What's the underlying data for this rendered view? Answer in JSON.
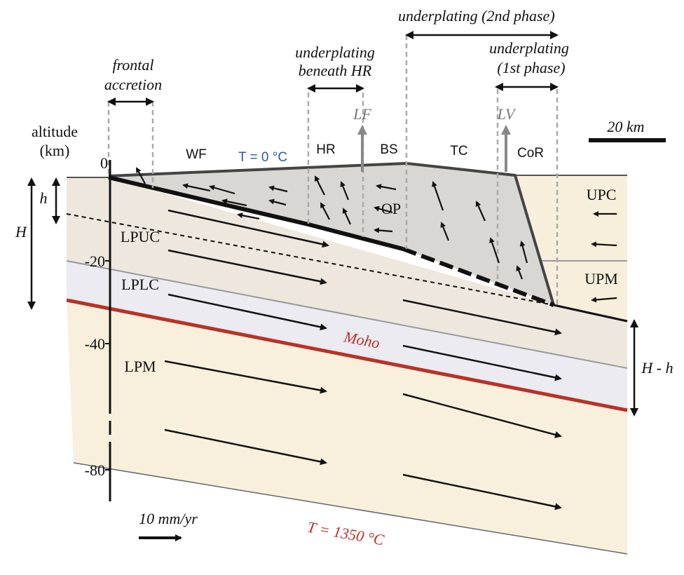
{
  "annotations": {
    "underplating_2nd": "underplating  (2nd phase)",
    "underplating_hr": [
      "underplating",
      "beneath HR"
    ],
    "frontal_accretion": [
      "frontal",
      "accretion"
    ],
    "underplating_1st": [
      "underplating",
      "(1st phase)"
    ],
    "lf": "LF",
    "lv": "LV",
    "scale_bar": "20 km",
    "velocity_scale": "10 mm/yr"
  },
  "axis": {
    "title": [
      "altitude",
      "(km)"
    ],
    "ticks": [
      "0",
      "-20",
      "-40",
      "-80"
    ]
  },
  "thickness": {
    "h": "h",
    "H": "H",
    "H_minus_h": "H - h"
  },
  "regions": {
    "wf": "WF",
    "t0": "T = 0 °C",
    "hr": "HR",
    "bs": "BS",
    "tc": "TC",
    "cor": "CoR",
    "upc": "UPC",
    "op": "OP",
    "lpuc": "LPUC",
    "upm": "UPM",
    "lplc": "LPLC",
    "moho": "Moho",
    "lpm": "LPM",
    "t1350": "T = 1350 °C"
  }
}
